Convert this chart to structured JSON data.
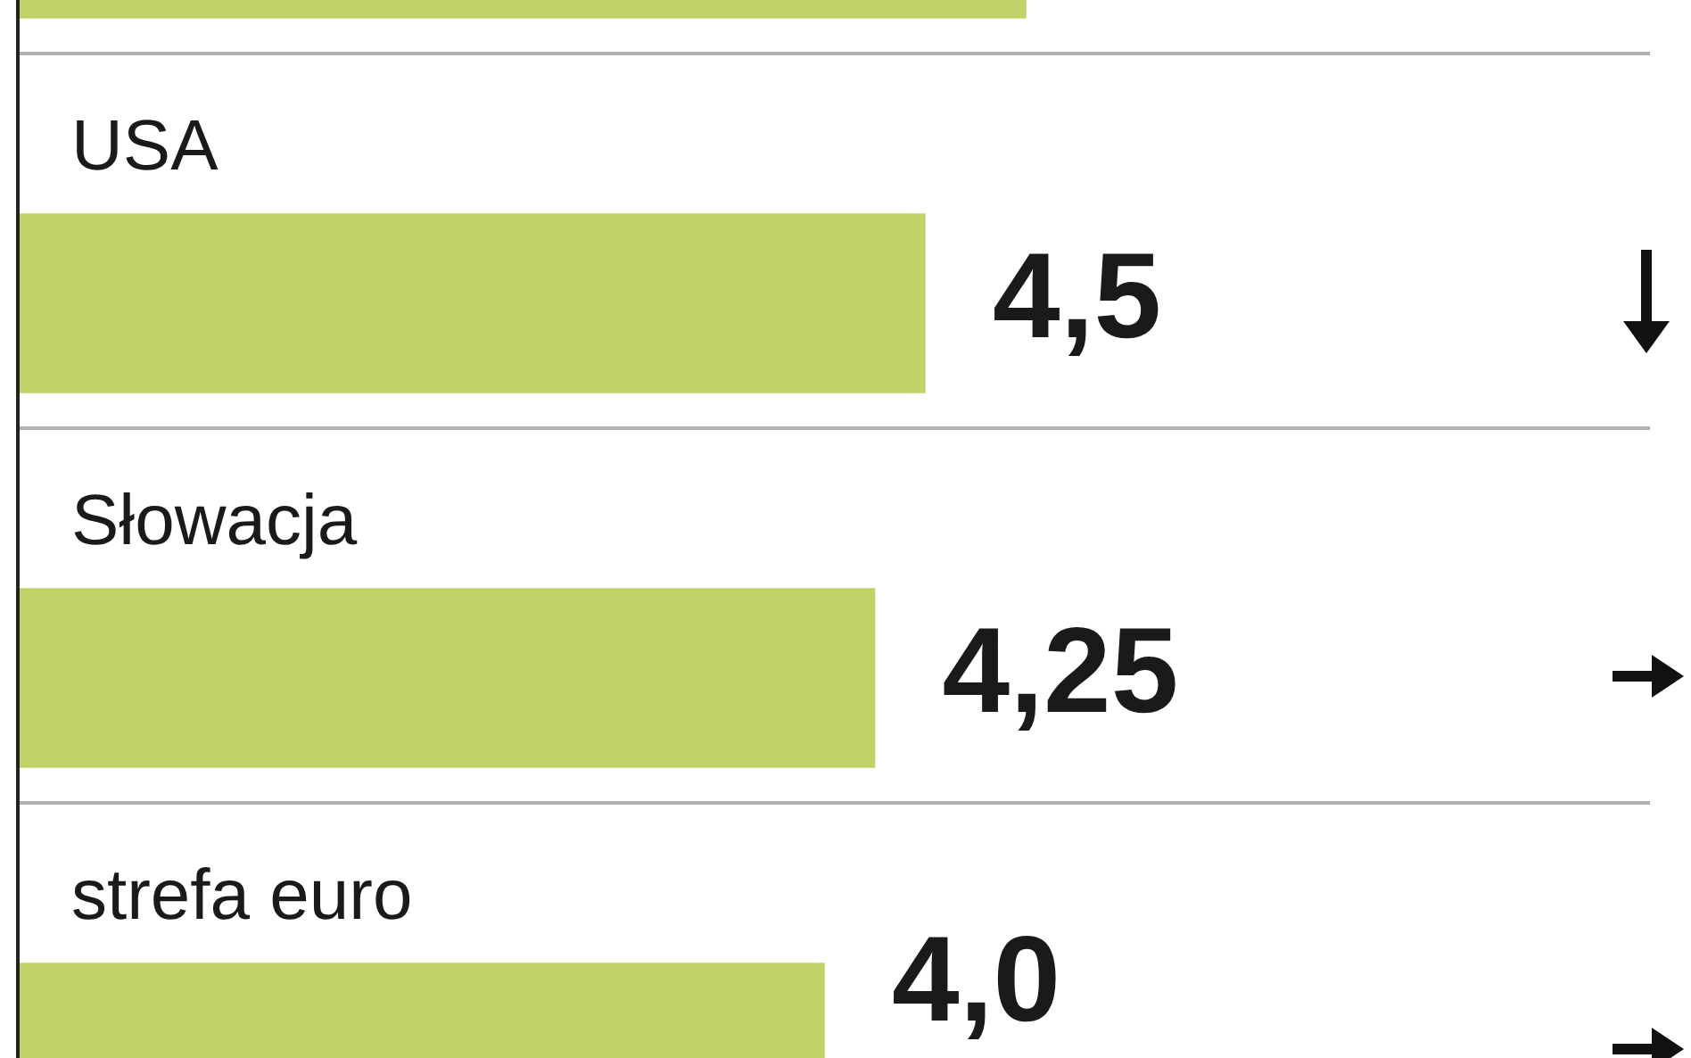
{
  "chart_data": {
    "type": "bar",
    "orientation": "horizontal",
    "categories": [
      null,
      "USA",
      "Słowacja",
      "strefa euro"
    ],
    "values": [
      5.0,
      4.5,
      4.25,
      4.0
    ],
    "value_labels": [
      null,
      "4,5",
      "4,25",
      "4,0"
    ],
    "color": "#c3d169",
    "grid": "y",
    "legend": false
  }
}
